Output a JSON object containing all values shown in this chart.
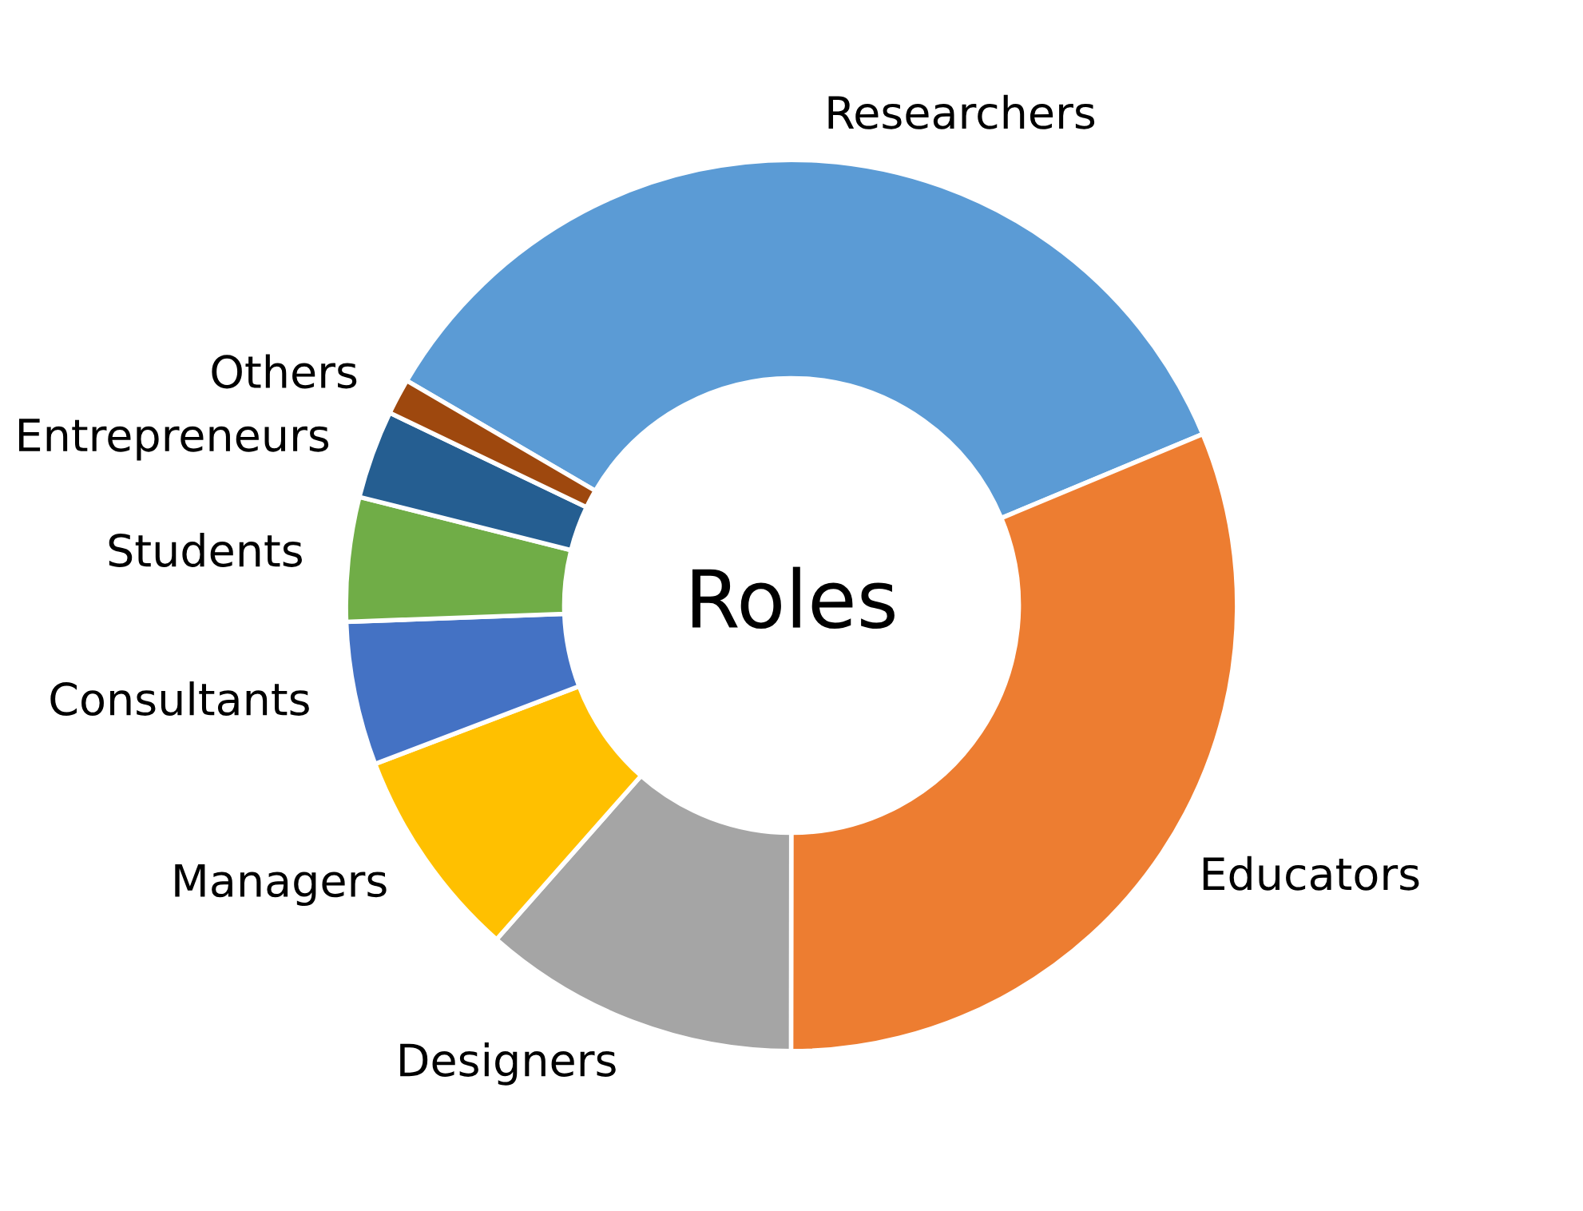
{
  "chart_data": {
    "type": "donut",
    "title": "Roles",
    "categories": [
      "Researchers",
      "Educators",
      "Designers",
      "Managers",
      "Consultants",
      "Students",
      "Entrepreneurs",
      "Others"
    ],
    "values": [
      35.3,
      31.3,
      11.5,
      7.7,
      5.2,
      4.5,
      3.2,
      1.3
    ],
    "colors": [
      "#5b9bd5",
      "#ed7d31",
      "#a5a5a5",
      "#ffc000",
      "#4472c4",
      "#70ad47",
      "#255e91",
      "#9e480e"
    ],
    "legend": false
  }
}
